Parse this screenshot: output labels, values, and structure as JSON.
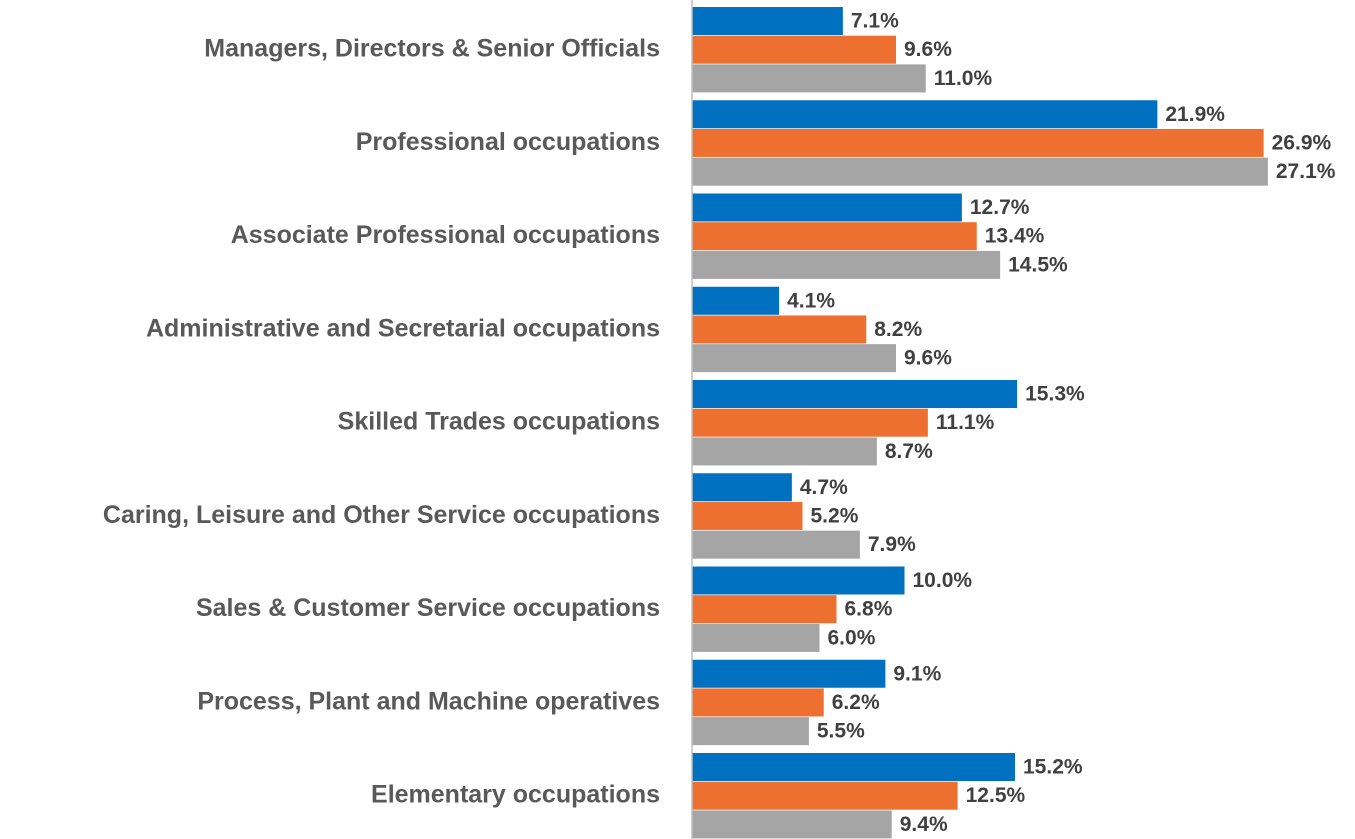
{
  "chart_data": {
    "type": "hbar",
    "categories": [
      "Managers, Directors & Senior Officials",
      "Professional occupations",
      "Associate Professional occupations",
      "Administrative and Secretarial occupations",
      "Skilled Trades occupations",
      "Caring, Leisure and Other Service occupations",
      "Sales & Customer Service occupations",
      "Process, Plant and Machine operatives",
      "Elementary occupations"
    ],
    "series": [
      {
        "color": "#0070c0",
        "values": [
          7.1,
          21.9,
          12.7,
          4.1,
          15.3,
          4.7,
          10.0,
          9.1,
          15.2
        ],
        "value_labels": [
          "7.1%",
          "21.9%",
          "12.7%",
          "4.1%",
          "15.3%",
          "4.7%",
          "10.0%",
          "9.1%",
          "15.2%"
        ]
      },
      {
        "color": "#ed7031",
        "values": [
          9.6,
          26.9,
          13.4,
          8.2,
          11.1,
          5.2,
          6.8,
          6.2,
          12.5
        ],
        "value_labels": [
          "9.6%",
          "26.9%",
          "13.4%",
          "8.2%",
          "11.1%",
          "5.2%",
          "6.8%",
          "6.2%",
          "12.5%"
        ]
      },
      {
        "color": "#a5a5a5",
        "values": [
          11.0,
          27.1,
          14.5,
          9.6,
          8.7,
          7.9,
          6.0,
          5.5,
          9.4
        ],
        "value_labels": [
          "11.0%",
          "27.1%",
          "14.5%",
          "9.6%",
          "8.7%",
          "7.9%",
          "6.0%",
          "5.5%",
          "9.4%"
        ]
      }
    ],
    "xlim": [
      0,
      28
    ]
  }
}
